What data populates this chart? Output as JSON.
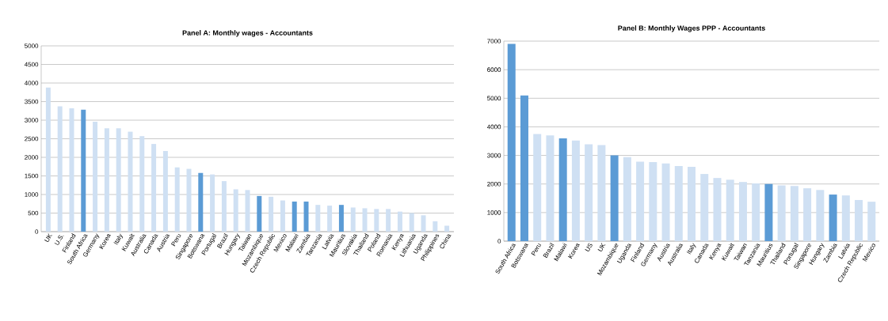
{
  "chart_data": [
    {
      "type": "bar",
      "title": "Panel A: Monthly wages - Accountants",
      "categories": [
        "UK",
        "U.S.",
        "Finland",
        "South Africa",
        "Germany",
        "Korea",
        "Italy",
        "Kuwait",
        "Australia",
        "Canada",
        "Austria",
        "Peru",
        "Singapore",
        "Botswana",
        "Portugal",
        "Brazil",
        "Hungary",
        "Taiwan",
        "Mozambique",
        "Czech Republic",
        "Mexico",
        "Malawi",
        "Zambia",
        "Tanzania",
        "Latvia",
        "Mauritius",
        "Slovakia",
        "Thailand",
        "Poland",
        "Romania",
        "Kenya",
        "Lithuania",
        "Uganda",
        "Philippines",
        "China"
      ],
      "values": [
        3880,
        3370,
        3320,
        3280,
        2960,
        2780,
        2780,
        2690,
        2570,
        2360,
        2170,
        1730,
        1690,
        1580,
        1540,
        1360,
        1140,
        1120,
        960,
        940,
        840,
        810,
        810,
        720,
        700,
        720,
        650,
        630,
        610,
        610,
        540,
        500,
        440,
        280,
        160
      ],
      "colors": [
        "#cfe0f3",
        "#cfe0f3",
        "#cfe0f3",
        "#5b9bd5",
        "#cfe0f3",
        "#cfe0f3",
        "#cfe0f3",
        "#cfe0f3",
        "#cfe0f3",
        "#cfe0f3",
        "#cfe0f3",
        "#cfe0f3",
        "#cfe0f3",
        "#5b9bd5",
        "#cfe0f3",
        "#cfe0f3",
        "#cfe0f3",
        "#cfe0f3",
        "#5b9bd5",
        "#cfe0f3",
        "#cfe0f3",
        "#5b9bd5",
        "#5b9bd5",
        "#cfe0f3",
        "#cfe0f3",
        "#5b9bd5",
        "#cfe0f3",
        "#cfe0f3",
        "#cfe0f3",
        "#cfe0f3",
        "#cfe0f3",
        "#cfe0f3",
        "#cfe0f3",
        "#cfe0f3",
        "#cfe0f3"
      ],
      "ylim": [
        0,
        5000
      ],
      "yticks": [
        0,
        500,
        1000,
        1500,
        2000,
        2500,
        3000,
        3500,
        4000,
        4500,
        5000
      ],
      "grid": "y"
    },
    {
      "type": "bar",
      "title": "Panel B: Monthly Wages PPP - Accountants",
      "categories": [
        "South Africa",
        "Botswana",
        "Peru",
        "Brazil",
        "Malawi",
        "Korea",
        "US",
        "UK",
        "Mozambique",
        "Uganda",
        "Finland",
        "Germany",
        "Austria",
        "Australia",
        "Italy",
        "Canada",
        "Kenya",
        "Kuwait",
        "Taiwan",
        "Tanzania",
        "Mauritius",
        "Thailand",
        "Portugal",
        "Singapore",
        "Hungary",
        "Zambia",
        "Latvia",
        "Czech Republic",
        "Mexico"
      ],
      "values": [
        6900,
        5100,
        3750,
        3700,
        3600,
        3520,
        3390,
        3360,
        3000,
        2940,
        2780,
        2770,
        2720,
        2630,
        2600,
        2350,
        2210,
        2150,
        2070,
        2020,
        2000,
        1950,
        1930,
        1850,
        1790,
        1630,
        1600,
        1440,
        1380
      ],
      "colors": [
        "#5b9bd5",
        "#5b9bd5",
        "#cfe0f3",
        "#cfe0f3",
        "#5b9bd5",
        "#cfe0f3",
        "#cfe0f3",
        "#cfe0f3",
        "#5b9bd5",
        "#cfe0f3",
        "#cfe0f3",
        "#cfe0f3",
        "#cfe0f3",
        "#cfe0f3",
        "#cfe0f3",
        "#cfe0f3",
        "#cfe0f3",
        "#cfe0f3",
        "#cfe0f3",
        "#cfe0f3",
        "#5b9bd5",
        "#cfe0f3",
        "#cfe0f3",
        "#cfe0f3",
        "#cfe0f3",
        "#5b9bd5",
        "#cfe0f3",
        "#cfe0f3",
        "#cfe0f3"
      ],
      "ylim": [
        0,
        7000
      ],
      "yticks": [
        0,
        1000,
        2000,
        3000,
        4000,
        5000,
        6000,
        7000
      ],
      "grid": "y"
    }
  ]
}
